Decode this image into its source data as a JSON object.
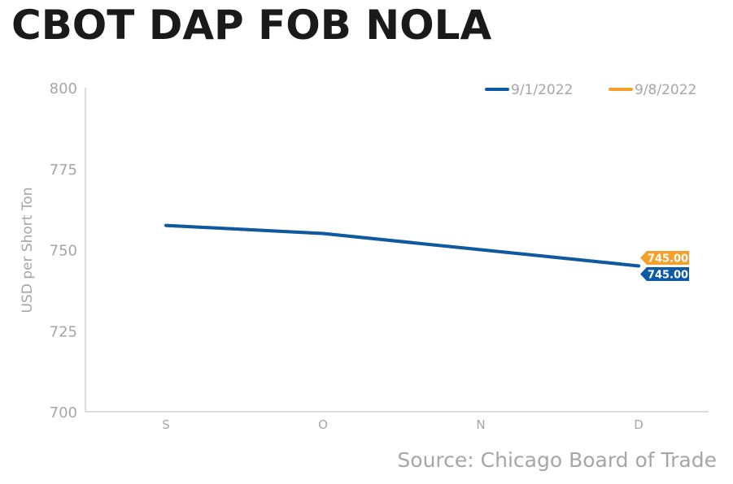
{
  "title": "CBOT DAP FOB NOLA",
  "source": "Source: Chicago Board of Trade",
  "colors": {
    "series1": "#0b5aa3",
    "series2": "#f4a02c",
    "axis": "#d0d0d0",
    "text": "#a6a6a6"
  },
  "chart_data": {
    "type": "line",
    "title": "CBOT DAP FOB NOLA",
    "ylabel": "USD per Short Ton",
    "xlabel": "",
    "categories": [
      "S",
      "O",
      "N",
      "D"
    ],
    "ylim": [
      700,
      800
    ],
    "yticks": [
      "800",
      "775",
      "750",
      "725",
      "700"
    ],
    "legend_position": "top-right",
    "grid": false,
    "series": [
      {
        "name": "9/1/2022",
        "color": "#0b5aa3",
        "values": [
          757.5,
          755,
          750,
          745
        ],
        "end_label": "745.00"
      },
      {
        "name": "9/8/2022",
        "color": "#f4a02c",
        "values": [
          757.5,
          755,
          750,
          745
        ],
        "end_label": "745.00"
      }
    ]
  }
}
